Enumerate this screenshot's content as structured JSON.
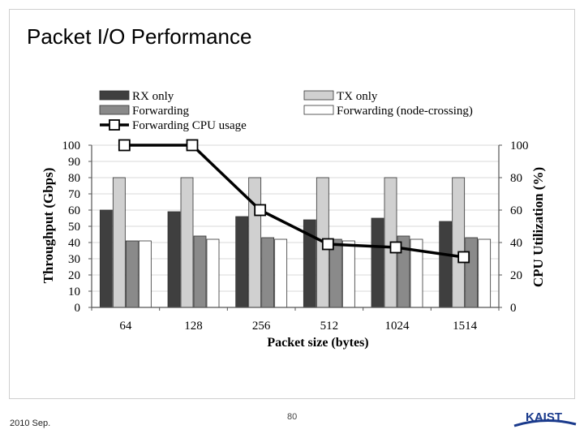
{
  "slide": {
    "title": "Packet I/O Performance",
    "date": "2010 Sep.",
    "page_number": "80",
    "logo_text": "KAIST"
  },
  "colors": {
    "rx_only": "#3f3f3f",
    "tx_only": "#d0d0d0",
    "forwarding": "#8a8a8a",
    "forwarding_node_crossing": "#ffffff",
    "cpu_line": "#000000",
    "logo_blue": "#1a3a8c"
  },
  "chart_data": {
    "type": "bar",
    "title": "",
    "categories": [
      "64",
      "128",
      "256",
      "512",
      "1024",
      "1514"
    ],
    "series": [
      {
        "name": "RX only",
        "values": [
          60,
          59,
          56,
          54,
          55,
          53
        ]
      },
      {
        "name": "TX only",
        "values": [
          80,
          80,
          80,
          80,
          80,
          80
        ]
      },
      {
        "name": "Forwarding",
        "values": [
          41,
          44,
          43,
          42,
          44,
          43
        ]
      },
      {
        "name": "Forwarding (node-crossing)",
        "values": [
          41,
          42,
          42,
          41,
          42,
          42
        ]
      }
    ],
    "line_series": {
      "name": "Forwarding CPU usage",
      "axis": "right",
      "values": [
        100,
        100,
        60,
        39,
        37,
        31
      ]
    },
    "xlabel": "Packet size (bytes)",
    "ylabel": "Throughput (Gbps)",
    "y2label": "CPU Utilization (%)",
    "ylim": [
      0,
      100
    ],
    "y2lim": [
      0,
      100
    ],
    "yticks": [
      "0",
      "10",
      "20",
      "30",
      "40",
      "50",
      "60",
      "70",
      "80",
      "90",
      "100"
    ],
    "y2ticks": [
      "0",
      "20",
      "40",
      "60",
      "80",
      "100"
    ],
    "grid": true,
    "legend_position": "top"
  }
}
